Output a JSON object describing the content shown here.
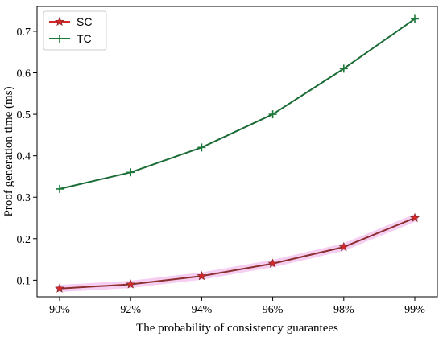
{
  "chart_data": {
    "type": "line",
    "categories": [
      "90%",
      "92%",
      "94%",
      "96%",
      "98%",
      "99%"
    ],
    "series": [
      {
        "name": "SC",
        "values": [
          0.08,
          0.09,
          0.11,
          0.14,
          0.18,
          0.25
        ],
        "color": "#d62728",
        "marker": "star",
        "line_color": "#8b2f2f"
      },
      {
        "name": "TC",
        "values": [
          0.32,
          0.36,
          0.42,
          0.5,
          0.61,
          0.73
        ],
        "color": "#1b7a3a",
        "marker": "plus",
        "line_color": "#1b6b35"
      }
    ],
    "xlabel": "The probability of consistency guarantees",
    "ylabel": "Proof generation time (ms)",
    "ylim": [
      0.06,
      0.76
    ],
    "yticks": [
      0.1,
      0.2,
      0.3,
      0.4,
      0.5,
      0.6,
      0.7
    ],
    "legend_position": "top-left",
    "grid": false
  }
}
